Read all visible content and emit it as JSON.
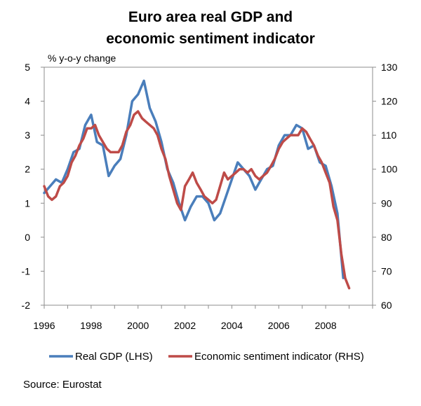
{
  "chart_data": {
    "type": "line",
    "title_lines": [
      "Euro area real GDP and",
      "economic sentiment indicator"
    ],
    "left_axis_unit": "% y-o-y change",
    "source": "Source: Eurostat",
    "x_ticks": [
      "1996",
      "1998",
      "2000",
      "2002",
      "2004",
      "2006",
      "2008"
    ],
    "x_range": [
      1996,
      2010
    ],
    "left_axis": {
      "range": [
        -2,
        5
      ],
      "ticks": [
        "-2",
        "-1",
        "0",
        "1",
        "2",
        "3",
        "4",
        "5"
      ]
    },
    "right_axis": {
      "range": [
        60,
        130
      ],
      "ticks": [
        "60",
        "70",
        "80",
        "90",
        "100",
        "110",
        "120",
        "130"
      ]
    },
    "colors": {
      "gdp": "#4A7EBB",
      "esi": "#BE4B48"
    },
    "series": [
      {
        "name": "Real GDP (LHS)",
        "axis": "left",
        "x": [
          1996.0,
          1996.25,
          1996.5,
          1996.75,
          1997.0,
          1997.25,
          1997.5,
          1997.75,
          1998.0,
          1998.25,
          1998.5,
          1998.75,
          1999.0,
          1999.25,
          1999.5,
          1999.75,
          2000.0,
          2000.25,
          2000.5,
          2000.75,
          2001.0,
          2001.25,
          2001.5,
          2001.75,
          2002.0,
          2002.25,
          2002.5,
          2002.75,
          2003.0,
          2003.25,
          2003.5,
          2003.75,
          2004.0,
          2004.25,
          2004.5,
          2004.75,
          2005.0,
          2005.25,
          2005.5,
          2005.75,
          2006.0,
          2006.25,
          2006.5,
          2006.75,
          2007.0,
          2007.25,
          2007.5,
          2007.75,
          2008.0,
          2008.25,
          2008.5,
          2008.75
        ],
        "values": [
          1.3,
          1.5,
          1.7,
          1.6,
          2.0,
          2.5,
          2.6,
          3.3,
          3.6,
          2.8,
          2.7,
          1.8,
          2.1,
          2.3,
          3.0,
          4.0,
          4.2,
          4.6,
          3.8,
          3.4,
          2.8,
          2.0,
          1.6,
          1.0,
          0.5,
          0.9,
          1.2,
          1.2,
          1.0,
          0.5,
          0.7,
          1.2,
          1.7,
          2.2,
          2.0,
          1.8,
          1.4,
          1.7,
          2.0,
          2.1,
          2.7,
          3.0,
          3.0,
          3.3,
          3.2,
          2.6,
          2.7,
          2.2,
          2.1,
          1.5,
          0.7,
          -1.2
        ]
      },
      {
        "name": "Economic sentiment indicator (RHS)",
        "axis": "right",
        "x": [
          1996.0,
          1996.17,
          1996.33,
          1996.5,
          1996.67,
          1996.83,
          1997.0,
          1997.17,
          1997.33,
          1997.5,
          1997.67,
          1997.83,
          1998.0,
          1998.17,
          1998.33,
          1998.5,
          1998.67,
          1998.83,
          1999.0,
          1999.17,
          1999.33,
          1999.5,
          1999.67,
          1999.83,
          2000.0,
          2000.17,
          2000.33,
          2000.5,
          2000.67,
          2000.83,
          2001.0,
          2001.17,
          2001.33,
          2001.5,
          2001.67,
          2001.83,
          2002.0,
          2002.17,
          2002.33,
          2002.5,
          2002.67,
          2002.83,
          2003.0,
          2003.17,
          2003.33,
          2003.5,
          2003.67,
          2003.83,
          2004.0,
          2004.17,
          2004.33,
          2004.5,
          2004.67,
          2004.83,
          2005.0,
          2005.17,
          2005.33,
          2005.5,
          2005.67,
          2005.83,
          2006.0,
          2006.17,
          2006.33,
          2006.5,
          2006.67,
          2006.83,
          2007.0,
          2007.17,
          2007.33,
          2007.5,
          2007.67,
          2007.83,
          2008.0,
          2008.17,
          2008.33,
          2008.5,
          2008.67,
          2008.83,
          2009.0
        ],
        "values": [
          95.0,
          92.0,
          91.0,
          92.0,
          95.0,
          96.0,
          98.0,
          102.0,
          104.0,
          107.0,
          109.0,
          112.0,
          112.0,
          113.0,
          110.0,
          108.0,
          106.0,
          105.0,
          105.0,
          105.0,
          107.0,
          111.0,
          113.0,
          116.0,
          117.0,
          115.0,
          114.0,
          113.0,
          112.0,
          110.0,
          106.0,
          103.0,
          98.0,
          94.0,
          90.0,
          88.0,
          95.0,
          97.0,
          99.0,
          96.0,
          94.0,
          92.0,
          91.0,
          90.0,
          91.0,
          95.0,
          99.0,
          97.0,
          98.0,
          99.0,
          100.0,
          100.0,
          99.0,
          100.0,
          98.0,
          97.0,
          98.0,
          99.0,
          101.0,
          103.0,
          106.0,
          108.0,
          109.0,
          110.0,
          110.0,
          110.0,
          112.0,
          111.0,
          109.0,
          107.0,
          104.0,
          102.0,
          99.0,
          96.0,
          89.0,
          85.0,
          75.0,
          68.0,
          65.0
        ]
      }
    ]
  }
}
